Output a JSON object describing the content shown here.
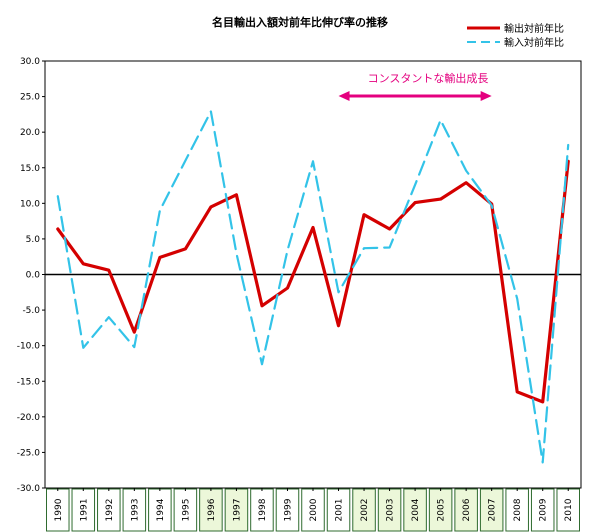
{
  "chart_data": {
    "type": "line",
    "title": "名目輸出入額対前年比伸び率の推移",
    "x": [
      "1990",
      "1991",
      "1992",
      "1993",
      "1994",
      "1995",
      "1996",
      "1997",
      "1998",
      "1999",
      "2000",
      "2001",
      "2002",
      "2003",
      "2004",
      "2005",
      "2006",
      "2007",
      "2008",
      "2009",
      "2010"
    ],
    "series": [
      {
        "name": "輸出対前年比",
        "color": "#d40000",
        "style": "solid",
        "values": [
          6.4,
          1.5,
          0.6,
          -8.1,
          2.4,
          3.6,
          9.5,
          11.2,
          -4.4,
          -1.9,
          6.6,
          -7.2,
          8.4,
          6.4,
          10.1,
          10.6,
          12.9,
          9.9,
          -16.5,
          -17.9,
          15.9
        ]
      },
      {
        "name": "輸入対前年比",
        "color": "#33c3e8",
        "style": "dashed",
        "values": [
          11.0,
          -10.3,
          -6.0,
          -10.2,
          9.0,
          16.0,
          22.9,
          3.0,
          -12.6,
          3.4,
          15.9,
          -2.5,
          3.7,
          3.8,
          12.6,
          21.7,
          14.6,
          9.7,
          -3.4,
          -26.4,
          18.2
        ]
      }
    ],
    "ylim": [
      -30,
      30
    ],
    "yticks": [
      -30,
      -25,
      -20,
      -15,
      -10,
      -5,
      0,
      5,
      10,
      15,
      20,
      25,
      30
    ],
    "ytick_labels": [
      "-30.0",
      "-25.0",
      "-20.0",
      "-15.0",
      "-10.0",
      "-5.0",
      "0.0",
      "5.0",
      "10.0",
      "15.0",
      "20.0",
      "25.0",
      "30.0"
    ],
    "highlighted_years": [
      "1996",
      "1997",
      "2002",
      "2003",
      "2004",
      "2005",
      "2006",
      "2007"
    ],
    "annotation": {
      "text": "コンスタントな輸出成長",
      "from": "2001",
      "to": "2007",
      "color": "#e4007f"
    },
    "legend": "top-right",
    "xlabel": "",
    "ylabel": ""
  }
}
